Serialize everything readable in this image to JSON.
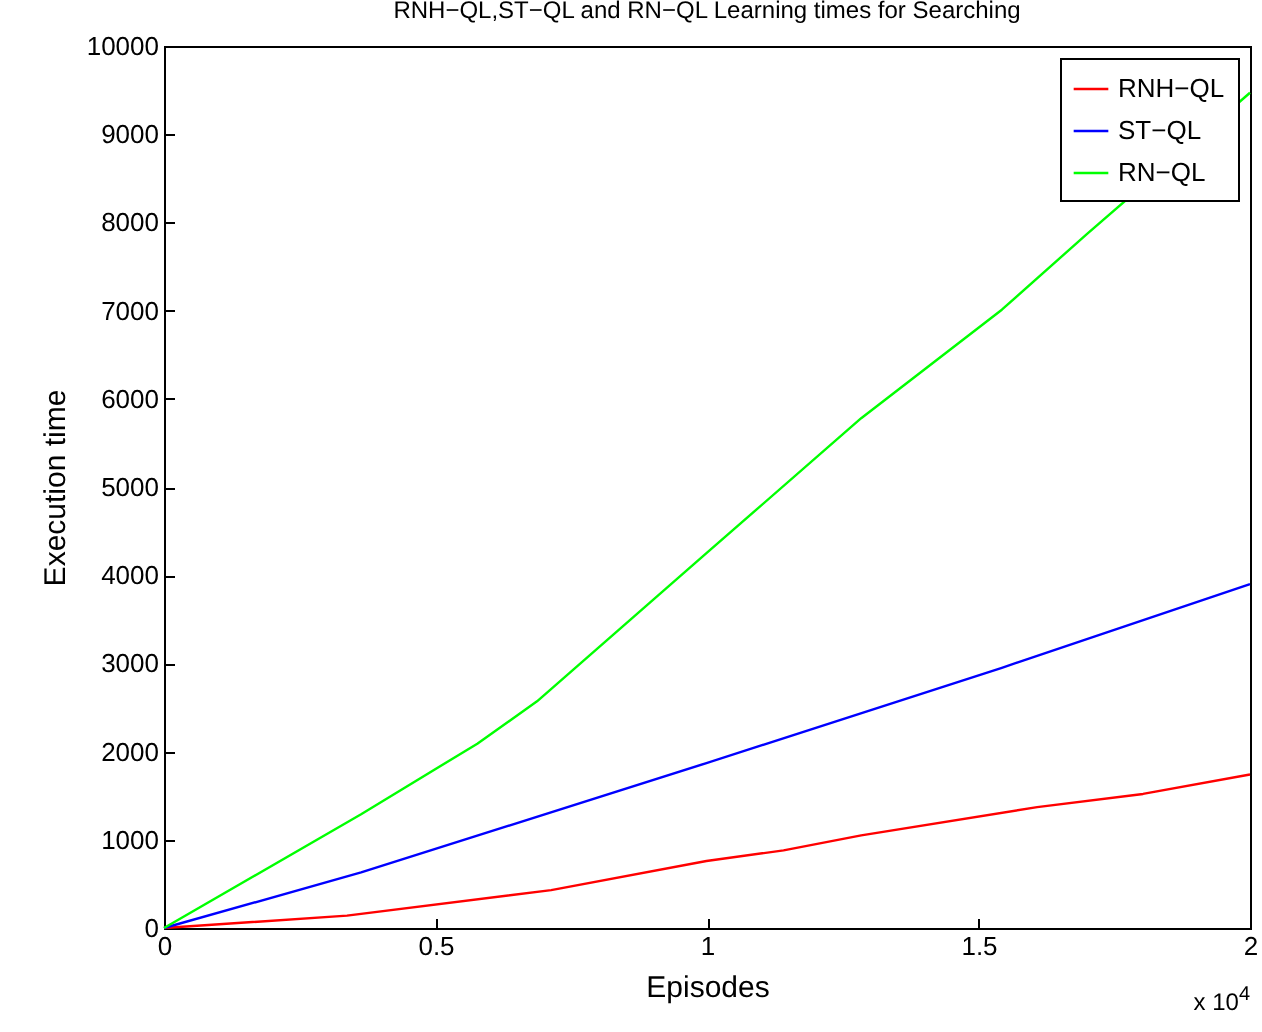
{
  "chart_data": {
    "type": "line",
    "title": "RNH−QL,ST−QL and RN−QL Learning times for Searching",
    "xlabel": "Episodes",
    "ylabel": "Execution time",
    "annotations": [
      "x 10$^{4}$"
    ],
    "xlim": [
      0,
      2
    ],
    "xticks": [
      0,
      0.5,
      1,
      1.5,
      2
    ],
    "ylim": [
      0,
      10000
    ],
    "yticks": [
      0,
      1000,
      2000,
      3000,
      4000,
      5000,
      6000,
      7000,
      8000,
      9000,
      10000
    ],
    "grid": false,
    "legend": "top right",
    "series": [
      {
        "name": "RNH−QL",
        "color": "#ff0000",
        "x": [
          0,
          0.337,
          0.713,
          0.999,
          1.141,
          1.284,
          1.608,
          1.803,
          2
        ],
        "values": [
          0,
          140,
          430,
          760,
          880,
          1050,
          1370,
          1520,
          1740
        ]
      },
      {
        "name": "ST−QL",
        "color": "#0000ff",
        "x": [
          0,
          0.363,
          0.999,
          1.543,
          2
        ],
        "values": [
          0,
          630,
          1870,
          2950,
          3900
        ]
      },
      {
        "name": "RN−QL",
        "color": "#00ff00",
        "x": [
          0,
          0.363,
          0.577,
          0.687,
          0.999,
          1.284,
          1.543,
          1.7,
          2
        ],
        "values": [
          0,
          1290,
          2090,
          2570,
          4250,
          5780,
          7010,
          7870,
          9470
        ]
      }
    ]
  }
}
